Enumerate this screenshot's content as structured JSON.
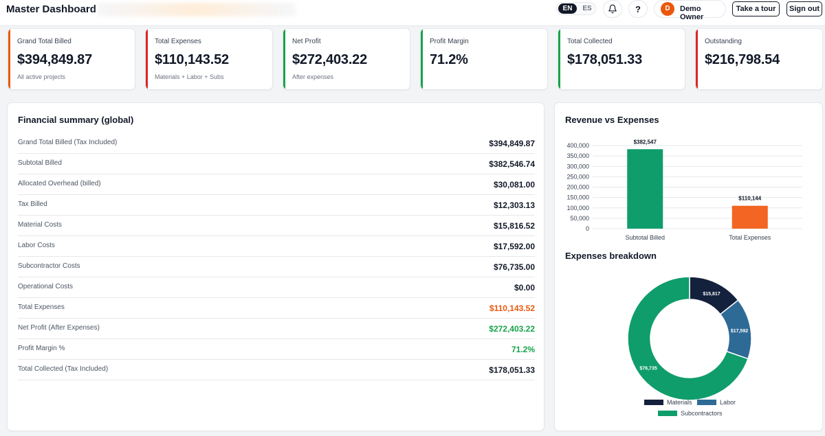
{
  "header": {
    "title": "Master Dashboard",
    "lang_en": "EN",
    "lang_es": "ES",
    "help_label": "?",
    "user_initial": "D",
    "user_name": "Demo Owner",
    "tour_label": "Take a tour",
    "signout_label": "Sign out"
  },
  "icons": {
    "bell": "bell-icon",
    "help": "question-icon"
  },
  "colors": {
    "accent_orange": "#ea580c",
    "accent_green": "#16a34a",
    "accent_red": "#dc2626",
    "bar_green": "#0f9d6b",
    "bar_orange": "#f26522",
    "navy": "#14213d",
    "steel_blue": "#2e6a96"
  },
  "kpis": [
    {
      "label": "Grand Total Billed",
      "value": "$394,849.87",
      "sub": "All active projects",
      "accent": "#ea580c"
    },
    {
      "label": "Total Expenses",
      "value": "$110,143.52",
      "sub": "Materials + Labor + Subs",
      "accent": "#dc2626"
    },
    {
      "label": "Net Profit",
      "value": "$272,403.22",
      "sub": "After expenses",
      "accent": "#16a34a"
    },
    {
      "label": "Profit Margin",
      "value": "71.2%",
      "sub": "",
      "accent": "#16a34a"
    },
    {
      "label": "Total Collected",
      "value": "$178,051.33",
      "sub": "",
      "accent": "#16a34a"
    },
    {
      "label": "Outstanding",
      "value": "$216,798.54",
      "sub": "",
      "accent": "#dc2626"
    }
  ],
  "financial_summary": {
    "title": "Financial summary (global)",
    "rows": [
      {
        "label": "Grand Total Billed (Tax Included)",
        "value": "$394,849.87",
        "tone": "default"
      },
      {
        "label": "Subtotal Billed",
        "value": "$382,546.74",
        "tone": "default"
      },
      {
        "label": "Allocated Overhead (billed)",
        "value": "$30,081.00",
        "tone": "default"
      },
      {
        "label": "Tax Billed",
        "value": "$12,303.13",
        "tone": "default"
      },
      {
        "label": "Material Costs",
        "value": "$15,816.52",
        "tone": "default"
      },
      {
        "label": "Labor Costs",
        "value": "$17,592.00",
        "tone": "default"
      },
      {
        "label": "Subcontractor Costs",
        "value": "$76,735.00",
        "tone": "default"
      },
      {
        "label": "Operational Costs",
        "value": "$0.00",
        "tone": "default"
      },
      {
        "label": "Total Expenses",
        "value": "$110,143.52",
        "tone": "red"
      },
      {
        "label": "Net Profit (After Expenses)",
        "value": "$272,403.22",
        "tone": "green"
      },
      {
        "label": "Profit Margin %",
        "value": "71.2%",
        "tone": "green"
      },
      {
        "label": "Total Collected (Tax Included)",
        "value": "$178,051.33",
        "tone": "default"
      }
    ]
  },
  "chart_data": [
    {
      "type": "bar",
      "title": "Revenue vs Expenses",
      "categories": [
        "Subtotal Billed",
        "Total Expenses"
      ],
      "values": [
        382547,
        110144
      ],
      "value_labels": [
        "$382,547",
        "$110,144"
      ],
      "colors": [
        "#0f9d6b",
        "#f26522"
      ],
      "ylim": [
        0,
        400000
      ],
      "yticks": [
        0,
        50000,
        100000,
        150000,
        200000,
        250000,
        300000,
        350000,
        400000
      ],
      "ytick_labels": [
        "0",
        "50,000",
        "100,000",
        "150,000",
        "200,000",
        "250,000",
        "300,000",
        "350,000",
        "400,000"
      ],
      "grid": true
    },
    {
      "type": "pie",
      "title": "Expenses breakdown",
      "categories": [
        "Materials",
        "Labor",
        "Subcontractors"
      ],
      "values": [
        15817,
        17592,
        76735
      ],
      "value_labels": [
        "$15,817",
        "$17,592",
        "$76,735"
      ],
      "colors": [
        "#14213d",
        "#2e6a96",
        "#0f9d6b"
      ],
      "legend": "bottom"
    }
  ]
}
